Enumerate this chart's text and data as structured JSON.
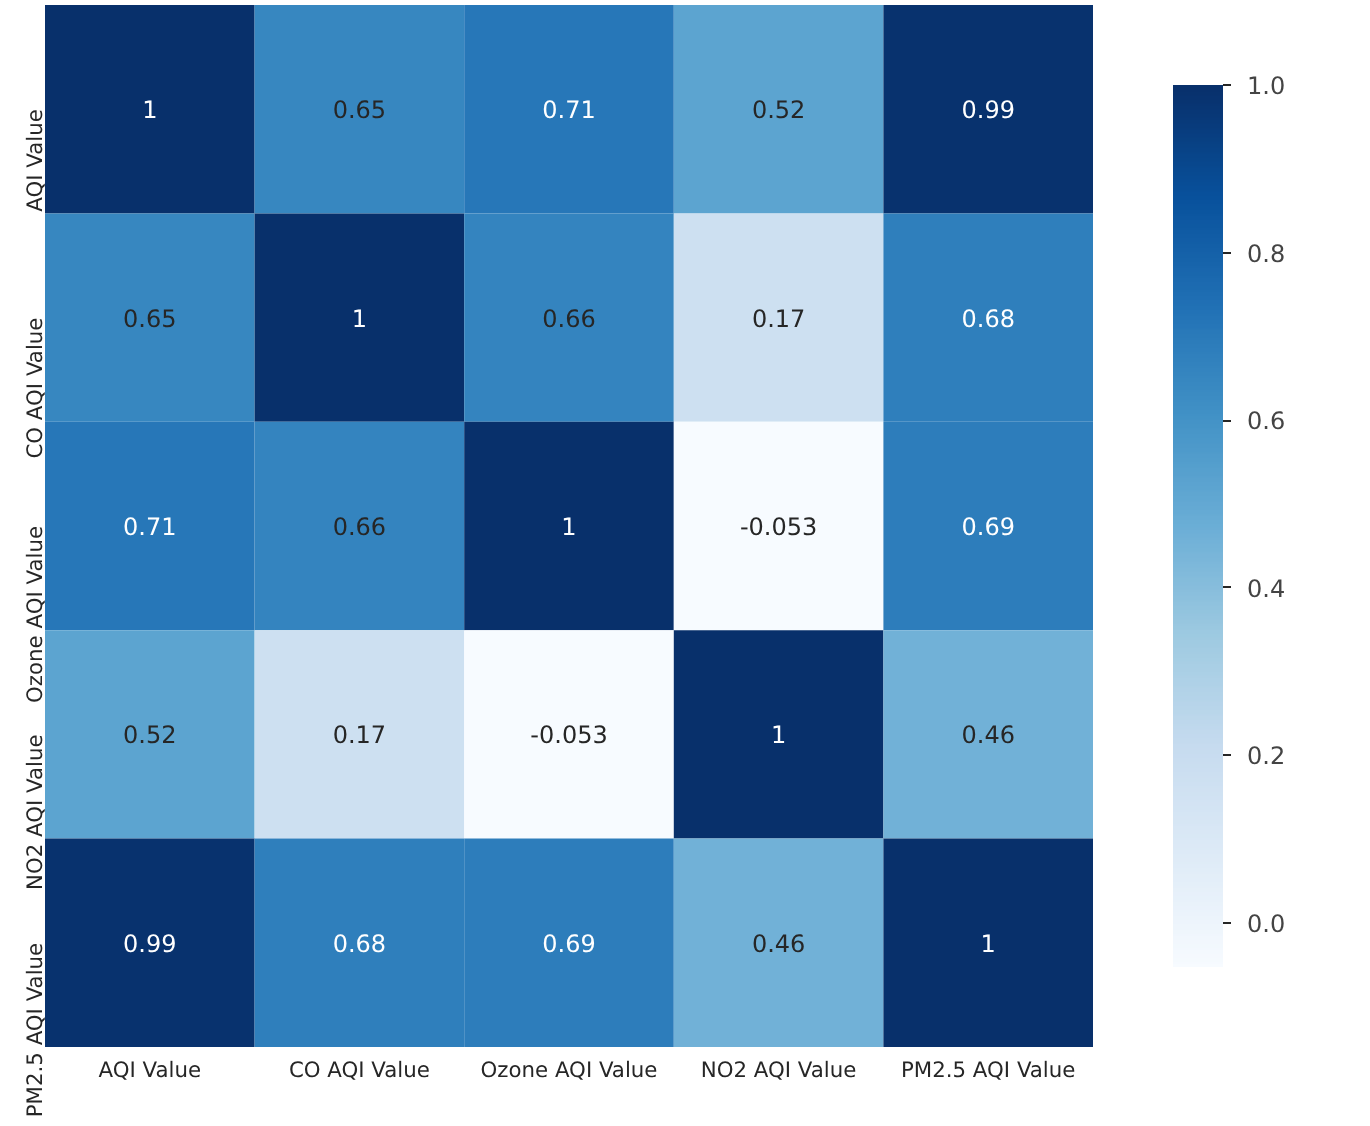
{
  "chart_data": {
    "type": "heatmap",
    "categories": [
      "AQI Value",
      "CO AQI Value",
      "Ozone AQI Value",
      "NO2 AQI Value",
      "PM2.5 AQI Value"
    ],
    "y_categories": [
      "AQI Value",
      "CO AQI Value",
      "Ozone AQI Value",
      "NO2 AQI Value",
      "PM2.5 AQI Value"
    ],
    "cells": [
      [
        1,
        0.65,
        0.71,
        0.52,
        0.99
      ],
      [
        0.65,
        1,
        0.66,
        0.17,
        0.68
      ],
      [
        0.71,
        0.66,
        1,
        -0.053,
        0.69
      ],
      [
        0.52,
        0.17,
        -0.053,
        1,
        0.46
      ],
      [
        0.99,
        0.68,
        0.69,
        0.46,
        1
      ]
    ],
    "data_labels": true,
    "clim": [
      -0.053,
      1
    ],
    "cticks": [
      {
        "value": 0,
        "label": "0.0"
      },
      {
        "value": 0.2,
        "label": "0.2"
      },
      {
        "value": 0.4,
        "label": "0.4"
      },
      {
        "value": 0.6,
        "label": "0.6"
      },
      {
        "value": 0.8,
        "label": "0.8"
      },
      {
        "value": 1,
        "label": "1.0"
      }
    ]
  }
}
